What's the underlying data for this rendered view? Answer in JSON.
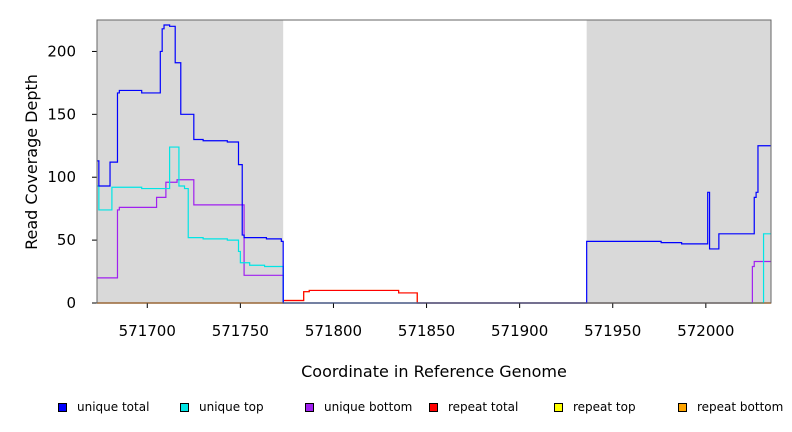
{
  "chart_data": {
    "type": "line",
    "title": "",
    "xlabel": "Coordinate in Reference Genome",
    "ylabel": "Read Coverage Depth",
    "xlim": [
      571673,
      572035
    ],
    "ylim": [
      0,
      225
    ],
    "xticks": [
      571700,
      571750,
      571800,
      571850,
      571900,
      571950,
      572000
    ],
    "yticks": [
      0,
      50,
      100,
      150,
      200
    ],
    "shaded_regions": [
      [
        571673,
        571773
      ],
      [
        571936,
        572035
      ]
    ],
    "shade_color": "#d9d9d9",
    "grid": false,
    "legend_position": "bottom",
    "series": [
      {
        "name": "unique total",
        "color": "#0000ff",
        "x": [
          571673,
          571674,
          571674,
          571680,
          571680,
          571684,
          571684,
          571685,
          571685,
          571690,
          571690,
          571697,
          571697,
          571707,
          571707,
          571708,
          571708,
          571709,
          571709,
          571712,
          571712,
          571715,
          571715,
          571718,
          571718,
          571725,
          571725,
          571730,
          571730,
          571743,
          571743,
          571749,
          571749,
          571751,
          571751,
          571752,
          571752,
          571764,
          571764,
          571772,
          571772,
          571773,
          571773,
          571936,
          571936,
          571976,
          571976,
          571987,
          571987,
          572001,
          572001,
          572002,
          572002,
          572007,
          572007,
          572026,
          572026,
          572027,
          572027,
          572028,
          572028,
          572032,
          572032,
          572035
        ],
        "y": [
          113,
          113,
          93,
          93,
          112,
          112,
          167,
          167,
          169,
          169,
          169,
          169,
          167,
          167,
          200,
          200,
          218,
          218,
          221,
          221,
          220,
          220,
          191,
          191,
          150,
          150,
          130,
          130,
          129,
          129,
          128,
          128,
          110,
          110,
          54,
          54,
          52,
          52,
          51,
          51,
          49,
          49,
          0,
          0,
          49,
          49,
          48,
          48,
          47,
          47,
          88,
          88,
          43,
          43,
          55,
          55,
          84,
          84,
          88,
          88,
          125,
          125,
          125,
          125
        ]
      },
      {
        "name": "unique top",
        "color": "#00e5e5",
        "x": [
          571673,
          571674,
          571674,
          571681,
          571681,
          571697,
          571697,
          571706,
          571706,
          571712,
          571712,
          571717,
          571717,
          571720,
          571720,
          571722,
          571722,
          571730,
          571730,
          571743,
          571743,
          571749,
          571749,
          571750,
          571750,
          571755,
          571755,
          571763,
          571763,
          571773,
          571773,
          571936,
          571936,
          572001,
          572001,
          572002,
          572002,
          572031,
          572031,
          572035
        ],
        "y": [
          93,
          93,
          74,
          74,
          92,
          92,
          91,
          91,
          91,
          91,
          124,
          124,
          93,
          93,
          91,
          91,
          52,
          52,
          51,
          51,
          50,
          50,
          41,
          41,
          32,
          32,
          30,
          30,
          29,
          29,
          0,
          0,
          0,
          0,
          0,
          0,
          0,
          0,
          55,
          55
        ]
      },
      {
        "name": "unique bottom",
        "color": "#a020f0",
        "x": [
          571673,
          571684,
          571684,
          571685,
          571685,
          571688,
          571688,
          571705,
          571705,
          571710,
          571710,
          571715,
          571715,
          571716,
          571716,
          571725,
          571725,
          571750,
          571750,
          571752,
          571752,
          571773,
          571773,
          571936,
          571936,
          572025,
          572025,
          572026,
          572026,
          572035
        ],
        "y": [
          20,
          20,
          74,
          74,
          76,
          76,
          76,
          76,
          84,
          84,
          96,
          96,
          96,
          96,
          98,
          98,
          78,
          78,
          78,
          78,
          22,
          22,
          0,
          0,
          0,
          0,
          29,
          29,
          33,
          33
        ]
      },
      {
        "name": "repeat total",
        "color": "#ff0000",
        "x": [
          571673,
          571773,
          571773,
          571776,
          571776,
          571784,
          571784,
          571787,
          571787,
          571835,
          571835,
          571845,
          571845,
          571936,
          571936,
          572035
        ],
        "y": [
          0,
          0,
          2,
          2,
          2,
          2,
          9,
          9,
          10,
          10,
          8,
          8,
          0,
          0,
          0,
          0
        ]
      },
      {
        "name": "repeat top",
        "color": "#ffff00",
        "x": [
          571673,
          572035
        ],
        "y": [
          0,
          0
        ]
      },
      {
        "name": "repeat bottom",
        "color": "#ffa500",
        "x": [
          571673,
          571773,
          571773,
          571776,
          571776,
          571784,
          571784,
          571787,
          571787,
          571835,
          571835,
          571845,
          571845,
          571936,
          571936,
          572035
        ],
        "y": [
          0,
          0,
          2,
          2,
          2,
          2,
          9,
          9,
          10,
          10,
          8,
          8,
          0,
          0,
          0,
          0
        ]
      }
    ]
  }
}
